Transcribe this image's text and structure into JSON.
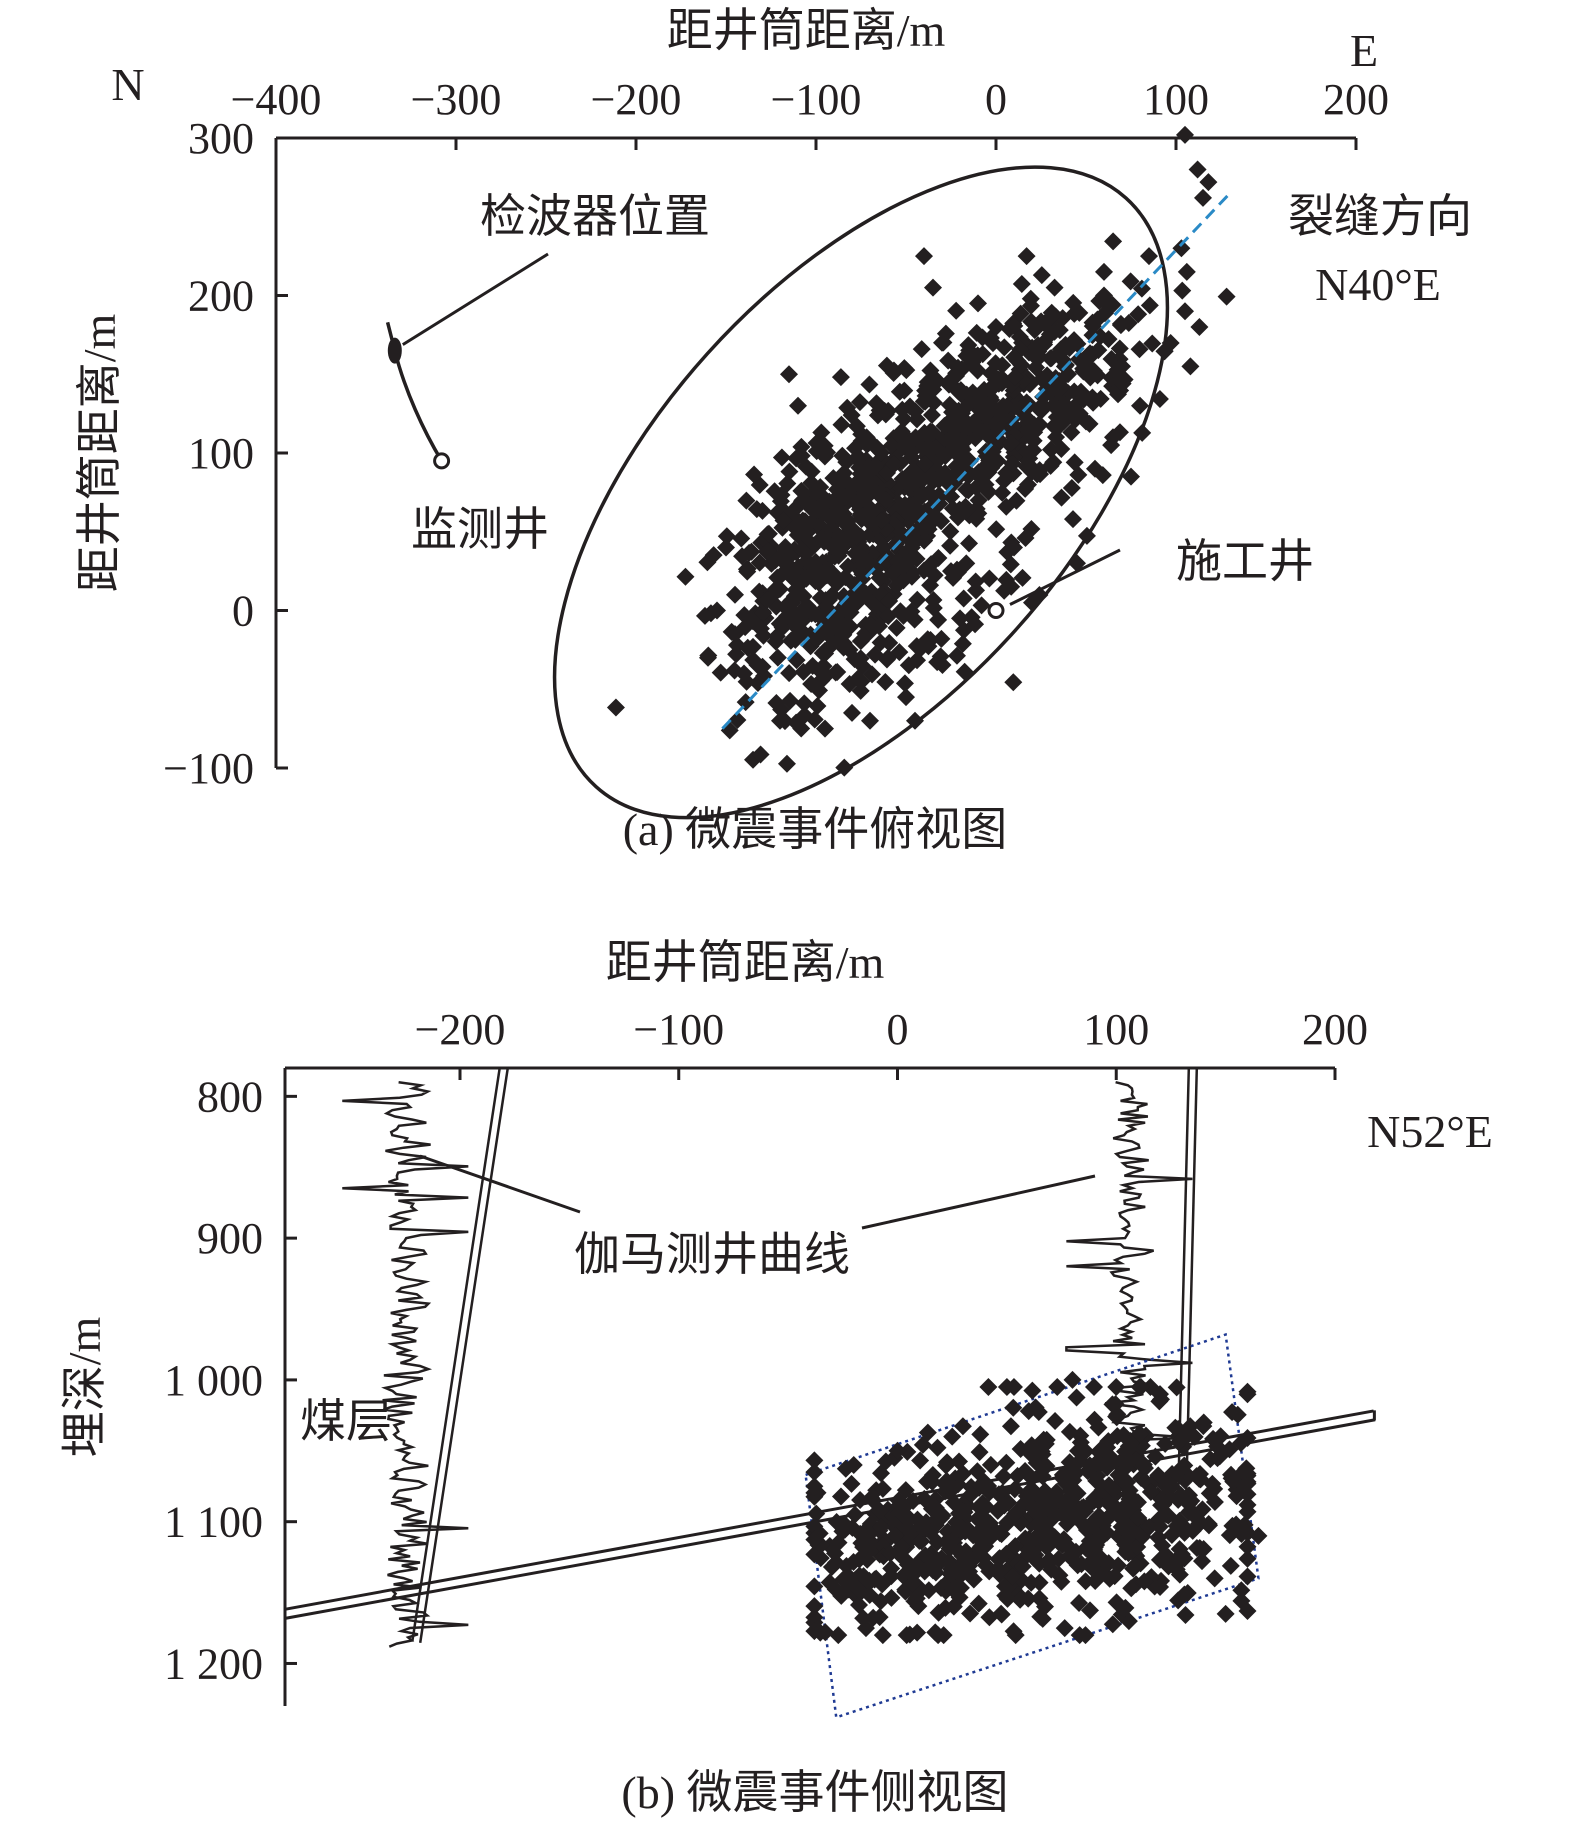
{
  "chart_data": [
    {
      "type": "scatter",
      "caption": "(a) 微震事件俯视图",
      "xlabel": "距井筒距离/m",
      "ylabel": "距井筒距离/m",
      "x_ticks": [
        -400,
        -300,
        -200,
        -100,
        0,
        100,
        200
      ],
      "y_ticks": [
        -100,
        0,
        100,
        200,
        300
      ],
      "xlim": [
        -400,
        200
      ],
      "ylim": [
        -100,
        300
      ],
      "x_axis_position": "top",
      "grid": false,
      "compass": {
        "north": "N",
        "east": "E"
      },
      "annotations": {
        "geophone": "检波器位置",
        "monitor_well": "监测井",
        "treatment_well": "施工井",
        "fracture_title": "裂缝方向",
        "fracture_azimuth": "N40°E"
      },
      "treatment_well": {
        "x": 0,
        "y": 0
      },
      "monitor_well": {
        "wellhead": {
          "x": -308,
          "y": 95
        },
        "geophone": {
          "x": -334,
          "y": 165
        },
        "top": {
          "x": -338,
          "y": 183
        }
      },
      "fracture_line": {
        "from": {
          "x": -152,
          "y": -75
        },
        "to": {
          "x": 130,
          "y": 265
        },
        "color": "#2a8ac6"
      },
      "event_ellipse": {
        "cx": -75,
        "cy": 75,
        "a": 220,
        "b": 115,
        "angle_deg": 48
      },
      "marker_color": "#231f20",
      "events": [
        [
          105,
          302
        ],
        [
          112,
          280
        ],
        [
          118,
          272
        ],
        [
          115,
          262
        ],
        [
          103,
          230
        ],
        [
          106,
          215
        ],
        [
          105,
          190
        ],
        [
          113,
          180
        ],
        [
          108,
          155
        ],
        [
          85,
          225
        ],
        [
          60,
          215
        ],
        [
          -40,
          225
        ],
        [
          17,
          225
        ],
        [
          -115,
          150
        ],
        [
          -110,
          130
        ],
        [
          -35,
          205
        ],
        [
          -10,
          195
        ],
        [
          40,
          150
        ],
        [
          70,
          155
        ],
        [
          80,
          130
        ],
        [
          65,
          110
        ],
        [
          75,
          85
        ],
        [
          55,
          90
        ],
        [
          45,
          30
        ],
        [
          20,
          5
        ],
        [
          -140,
          -40
        ],
        [
          -145,
          -15
        ],
        [
          -150,
          40
        ],
        [
          -145,
          10
        ],
        [
          -160,
          -30
        ],
        [
          -155,
          0
        ],
        [
          -80,
          -65
        ],
        [
          -45,
          -70
        ],
        [
          -50,
          -55
        ],
        [
          -20,
          -5
        ],
        [
          -25,
          25
        ],
        [
          -60,
          -30
        ],
        [
          -65,
          -10
        ],
        [
          -120,
          -70
        ],
        [
          -95,
          -75
        ],
        [
          -70,
          -70
        ],
        [
          10,
          40
        ],
        [
          50,
          120
        ],
        [
          60,
          200
        ],
        [
          -30,
          170
        ],
        [
          0,
          180
        ]
      ],
      "event_clusters": [
        {
          "cx": -85,
          "cy": 55,
          "sx": 28,
          "sy": 32,
          "rho": 0.4,
          "n": 380
        },
        {
          "cx": -20,
          "cy": 110,
          "sx": 38,
          "sy": 40,
          "rho": 0.5,
          "n": 300
        },
        {
          "cx": 25,
          "cy": 145,
          "sx": 30,
          "sy": 28,
          "rho": 0.3,
          "n": 180
        },
        {
          "cx": -95,
          "cy": -20,
          "sx": 28,
          "sy": 30,
          "rho": 0.3,
          "n": 150
        },
        {
          "cx": -40,
          "cy": 30,
          "sx": 35,
          "sy": 35,
          "rho": 0.2,
          "n": 110
        }
      ]
    },
    {
      "type": "scatter",
      "caption": "(b) 微震事件侧视图",
      "xlabel": "距井筒距离/m",
      "ylabel": "埋深/m",
      "x_ticks": [
        -200,
        -100,
        0,
        100,
        200
      ],
      "y_ticks": [
        800,
        900,
        1000,
        1100,
        1200
      ],
      "y_tick_labels": [
        "800",
        "900",
        "1 000",
        "1 100",
        "1 200"
      ],
      "xlim": [
        -280,
        200
      ],
      "ylim": [
        1230,
        780
      ],
      "x_axis_position": "top",
      "y_inverted": true,
      "grid": false,
      "direction_label": "N52°E",
      "annotations": {
        "gamma_log": "伽马测井曲线",
        "coal_seam": "煤层"
      },
      "coal_seam": {
        "from": {
          "x": -280,
          "y": 1165
        },
        "to": {
          "x": 218,
          "y": 1025
        }
      },
      "wellbores": [
        {
          "top": {
            "x": -180,
            "y": 780
          },
          "bottom": {
            "x": -220,
            "y": 1185
          }
        },
        {
          "top": {
            "x": 135,
            "y": 780
          },
          "bottom": {
            "x": 130,
            "y": 1090
          }
        }
      ],
      "gamma_logs": [
        {
          "base_x": -225,
          "amplitude": 12,
          "top": 790,
          "bottom": 1190
        },
        {
          "base_x": 106,
          "amplitude": 12,
          "top": 790,
          "bottom": 1045
        }
      ],
      "event_box": [
        {
          "x": -42,
          "y": 1067
        },
        {
          "x": 150,
          "y": 968
        },
        {
          "x": 165,
          "y": 1140
        },
        {
          "x": -28,
          "y": 1238
        }
      ],
      "event_box_color": "#1f3a93",
      "marker_color": "#231f20",
      "events": [
        [
          -38,
          1075
        ],
        [
          -33,
          1178
        ],
        [
          155,
          1082
        ],
        [
          160,
          1108
        ],
        [
          150,
          1165
        ],
        [
          140,
          1030
        ],
        [
          120,
          1010
        ],
        [
          100,
          1005
        ],
        [
          80,
          1000
        ],
        [
          -20,
          1060
        ],
        [
          0,
          1050
        ],
        [
          25,
          1040
        ],
        [
          60,
          1022
        ],
        [
          -30,
          1132
        ],
        [
          -25,
          1150
        ],
        [
          165,
          1110
        ],
        [
          145,
          1140
        ]
      ],
      "event_clusters": [
        {
          "cx": 70,
          "cy": 1095,
          "sx": 50,
          "sy": 38,
          "rho": -0.2,
          "n": 420
        },
        {
          "cx": 10,
          "cy": 1120,
          "sx": 30,
          "sy": 30,
          "rho": 0,
          "n": 180
        },
        {
          "cx": 110,
          "cy": 1080,
          "sx": 25,
          "sy": 35,
          "rho": 0,
          "n": 150
        }
      ]
    }
  ]
}
